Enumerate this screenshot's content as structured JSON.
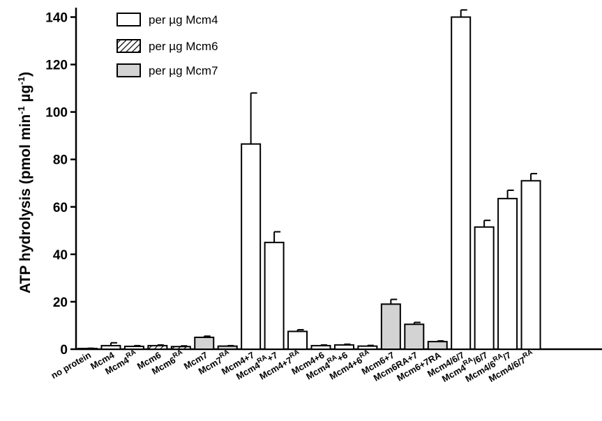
{
  "colors": {
    "open_fill": "#ffffff",
    "gray_fill": "#d3d3d3",
    "stroke": "#000000"
  },
  "chart_data": {
    "type": "bar",
    "title": "",
    "ylabel": "ATP hydrolysis (pmol min-1 µg-1)",
    "ylabel_parts": {
      "main": "ATP hydrolysis (pmol min",
      "sup1": "-1",
      "mid": " µg",
      "sup2": "-1",
      "end": ")"
    },
    "xlabel": "",
    "ylim": [
      0,
      145
    ],
    "yticks": [
      0,
      20,
      40,
      60,
      80,
      100,
      120,
      140
    ],
    "legend_position": "top-left",
    "legend": [
      {
        "name": "per µg Mcm4",
        "fill": "open"
      },
      {
        "name": "per µg Mcm6",
        "fill": "hatched"
      },
      {
        "name": "per µg Mcm7",
        "fill": "gray"
      }
    ],
    "categories": [
      {
        "label": "no protein",
        "sup": ""
      },
      {
        "label": "Mcm4",
        "sup": ""
      },
      {
        "label": "Mcm4",
        "sup": "RA"
      },
      {
        "label": "Mcm6",
        "sup": ""
      },
      {
        "label": "Mcm6",
        "sup": "RA"
      },
      {
        "label": "Mcm7",
        "sup": ""
      },
      {
        "label": "Mcm7",
        "sup": "RA"
      },
      {
        "label": "Mcm4+7",
        "sup": ""
      },
      {
        "label": "Mcm4",
        "sup": "RA",
        "suffix": "+7"
      },
      {
        "label": "Mcm4+7",
        "sup": "RA"
      },
      {
        "label": "Mcm4+6",
        "sup": ""
      },
      {
        "label": "Mcm4",
        "sup": "RA",
        "suffix": "+6"
      },
      {
        "label": "Mcm4+6",
        "sup": "RA"
      },
      {
        "label": "Mcm6+7",
        "sup": ""
      },
      {
        "label": "Mcm6RA+7",
        "sup": ""
      },
      {
        "label": "Mcm6+7RA",
        "sup": ""
      },
      {
        "label": "Mcm4/6/7",
        "sup": ""
      },
      {
        "label": "Mcm4",
        "sup": "RA",
        "suffix": "/6/7"
      },
      {
        "label": "Mcm4/6",
        "sup": "RA",
        "suffix": "/7"
      },
      {
        "label": "Mcm4/6/7",
        "sup": "RA"
      }
    ],
    "values": [
      0.3,
      1.5,
      1.2,
      1.5,
      1.1,
      5.0,
      1.3,
      86.5,
      45.0,
      7.5,
      1.5,
      1.8,
      1.3,
      19.0,
      10.5,
      3.2,
      140.0,
      51.5,
      63.5,
      71.0
    ],
    "errors": [
      0.1,
      1.2,
      0.3,
      0.3,
      0.3,
      0.5,
      0.2,
      21.5,
      4.5,
      0.7,
      0.3,
      0.3,
      0.3,
      2.0,
      0.8,
      0.3,
      3.0,
      2.8,
      3.5,
      3.0
    ],
    "fills": [
      "open",
      "open",
      "open",
      "hatched",
      "hatched",
      "gray",
      "gray",
      "open",
      "open",
      "open",
      "open",
      "open",
      "open",
      "gray",
      "gray",
      "gray",
      "open",
      "open",
      "open",
      "open"
    ]
  }
}
